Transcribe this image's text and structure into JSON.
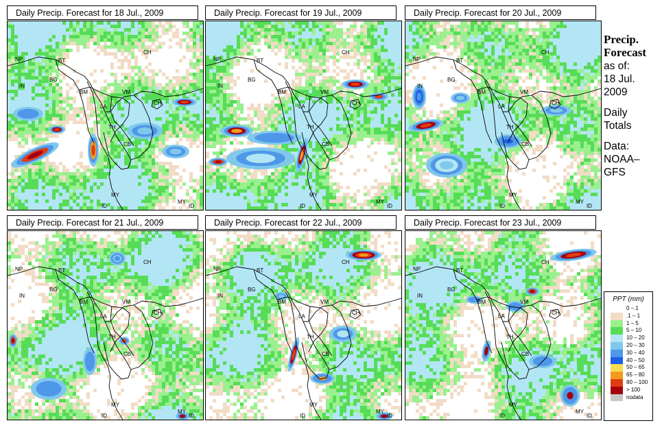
{
  "panels": [
    {
      "title": "Daily Precip. Forecast for  18 Jul., 2009"
    },
    {
      "title": "Daily Precip. Forecast for  19 Jul., 2009"
    },
    {
      "title": "Daily Precip. Forecast for  20 Jul., 2009"
    },
    {
      "title": "Daily Precip. Forecast for  21 Jul., 2009"
    },
    {
      "title": "Daily Precip. Forecast for  22 Jul., 2009"
    },
    {
      "title": "Daily Precip. Forecast for  23 Jul., 2009"
    }
  ],
  "map_labels": [
    "NP",
    "BT",
    "BG",
    "IN",
    "CH",
    "BM",
    "VM",
    "LA",
    "CH",
    "TH",
    "CB",
    "MY",
    "ID",
    "MY",
    "ID"
  ],
  "side": {
    "title1": "Precip.",
    "title2": "Forecast",
    "asof1": "as of:",
    "asof2": "18 Jul.",
    "asof3": "2009",
    "daily1": "Daily",
    "daily2": "Totals",
    "data1": "Data:",
    "data2": "NOAA–",
    "data3": "GFS"
  },
  "legend": {
    "title": "PPT (mm)",
    "items": [
      {
        "label": "0 –.1",
        "color": "#ffffff"
      },
      {
        "label": ".1 – 1",
        "color": "#f2dcc6"
      },
      {
        "label": "1 – 5",
        "color": "#9af08e"
      },
      {
        "label": "5 – 10",
        "color": "#57dc57"
      },
      {
        "label": "10 – 20",
        "color": "#b2e6f4"
      },
      {
        "label": "20 – 30",
        "color": "#7fc8ec"
      },
      {
        "label": "30 – 40",
        "color": "#4f97e8"
      },
      {
        "label": "40 – 50",
        "color": "#1c5fe6"
      },
      {
        "label": "50 – 65",
        "color": "#f5de52"
      },
      {
        "label": "65 – 80",
        "color": "#f59a1e"
      },
      {
        "label": "80 – 100",
        "color": "#e03c14"
      },
      {
        "label": "> 100",
        "color": "#a4000c"
      },
      {
        "label": "nodata",
        "color": "#c8c8c8"
      }
    ]
  }
}
